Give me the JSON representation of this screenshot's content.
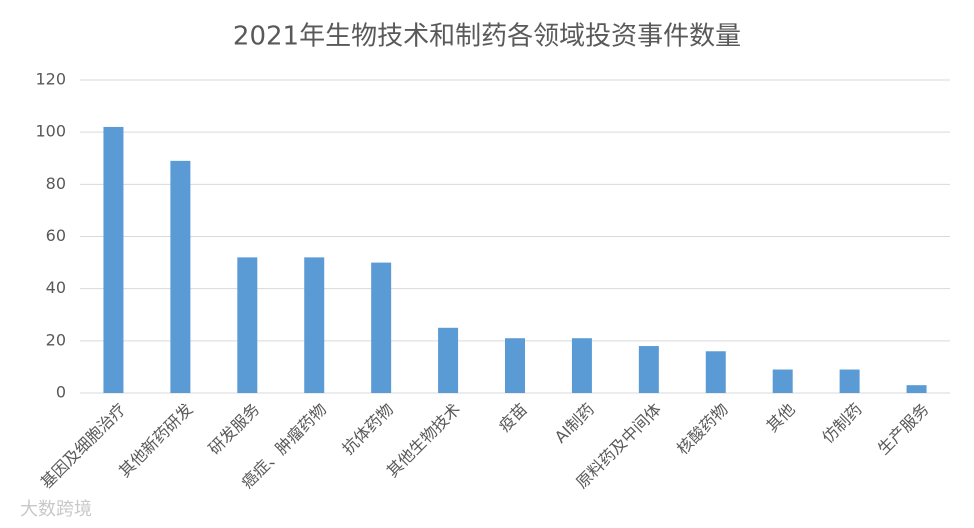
{
  "chart_data": {
    "type": "bar",
    "title": "2021年生物技术和制药各领域投资事件数量",
    "categories": [
      "基因及细胞治疗",
      "其他新药研发",
      "研发服务",
      "癌症、肿瘤药物",
      "抗体药物",
      "其他生物技术",
      "疫苗",
      "AI制药",
      "原料药及中间体",
      "核酸药物",
      "其他",
      "仿制药",
      "生产服务"
    ],
    "values": [
      102,
      89,
      52,
      52,
      50,
      25,
      21,
      21,
      18,
      16,
      9,
      9,
      3
    ],
    "color": "#5b9bd5",
    "ylim": [
      0,
      120
    ],
    "yticks": [
      0,
      20,
      40,
      60,
      80,
      100,
      120
    ],
    "grid": true
  },
  "watermark": "大数跨境"
}
